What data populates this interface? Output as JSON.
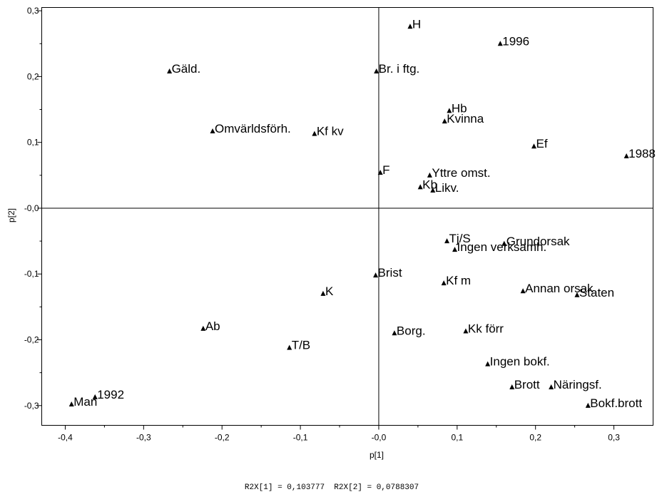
{
  "chart_data": {
    "type": "scatter",
    "title": "",
    "xlabel": "p[1]",
    "ylabel": "p[2]",
    "xlim": [
      -0.43,
      0.35
    ],
    "ylim": [
      -0.33,
      0.305
    ],
    "x_ticks": [
      -0.4,
      -0.3,
      -0.2,
      -0.1,
      0.0,
      0.1,
      0.2,
      0.3
    ],
    "x_tick_labels": [
      "-0,4",
      "-0,3",
      "-0,2",
      "-0,1",
      "-0,0",
      "0,1",
      "0,2",
      "0,3"
    ],
    "y_ticks": [
      0.3,
      0.2,
      0.1,
      0.0,
      -0.1,
      -0.2,
      -0.3
    ],
    "y_tick_labels": [
      "0,3",
      "0,2",
      "0,1",
      "-0,0",
      "-0,1",
      "-0,2",
      "-0,3"
    ],
    "marker": "triangle",
    "reference_lines": {
      "x": 0.0,
      "y": 0.0
    },
    "footer": "R2X[1] = 0,103777  R2X[2] = 0,0788307",
    "points": [
      {
        "label": "H",
        "x": 0.04,
        "y": 0.276
      },
      {
        "label": "1996",
        "x": 0.155,
        "y": 0.25
      },
      {
        "label": "Gäld.",
        "x": -0.267,
        "y": 0.208
      },
      {
        "label": "Br. i ftg.",
        "x": -0.003,
        "y": 0.208
      },
      {
        "label": "Hb",
        "x": 0.09,
        "y": 0.148
      },
      {
        "label": "Kvinna",
        "x": 0.084,
        "y": 0.132
      },
      {
        "label": "Omvärldsförh.",
        "x": -0.212,
        "y": 0.117
      },
      {
        "label": "Kf kv",
        "x": -0.082,
        "y": 0.113
      },
      {
        "label": "Ef",
        "x": 0.198,
        "y": 0.094
      },
      {
        "label": "1988",
        "x": 0.316,
        "y": 0.079
      },
      {
        "label": "F",
        "x": 0.002,
        "y": 0.054
      },
      {
        "label": "Yttre omst.",
        "x": 0.065,
        "y": 0.05
      },
      {
        "label": "Kb",
        "x": 0.053,
        "y": 0.032
      },
      {
        "label": "Likv.",
        "x": 0.069,
        "y": 0.027
      },
      {
        "label": "Tj/S",
        "x": 0.087,
        "y": -0.05
      },
      {
        "label": "Grundorsak",
        "x": 0.16,
        "y": -0.054
      },
      {
        "label": "Ingen verksamh.",
        "x": 0.097,
        "y": -0.063
      },
      {
        "label": "Brist",
        "x": -0.004,
        "y": -0.102
      },
      {
        "label": "Kf m",
        "x": 0.083,
        "y": -0.114
      },
      {
        "label": "Annan orsak",
        "x": 0.184,
        "y": -0.126
      },
      {
        "label": "Staten",
        "x": 0.253,
        "y": -0.132
      },
      {
        "label": "K",
        "x": -0.071,
        "y": -0.13
      },
      {
        "label": "Ab",
        "x": -0.224,
        "y": -0.183
      },
      {
        "label": "Borg.",
        "x": 0.02,
        "y": -0.19
      },
      {
        "label": "Kk förr",
        "x": 0.111,
        "y": -0.187
      },
      {
        "label": "T/B",
        "x": -0.114,
        "y": -0.212
      },
      {
        "label": "Ingen bokf.",
        "x": 0.139,
        "y": -0.237
      },
      {
        "label": "Brott",
        "x": 0.17,
        "y": -0.272
      },
      {
        "label": "Näringsf.",
        "x": 0.22,
        "y": -0.272
      },
      {
        "label": "1992",
        "x": -0.362,
        "y": -0.287
      },
      {
        "label": "Man",
        "x": -0.392,
        "y": -0.298
      },
      {
        "label": "Bokf.brott",
        "x": 0.267,
        "y": -0.3
      }
    ]
  }
}
